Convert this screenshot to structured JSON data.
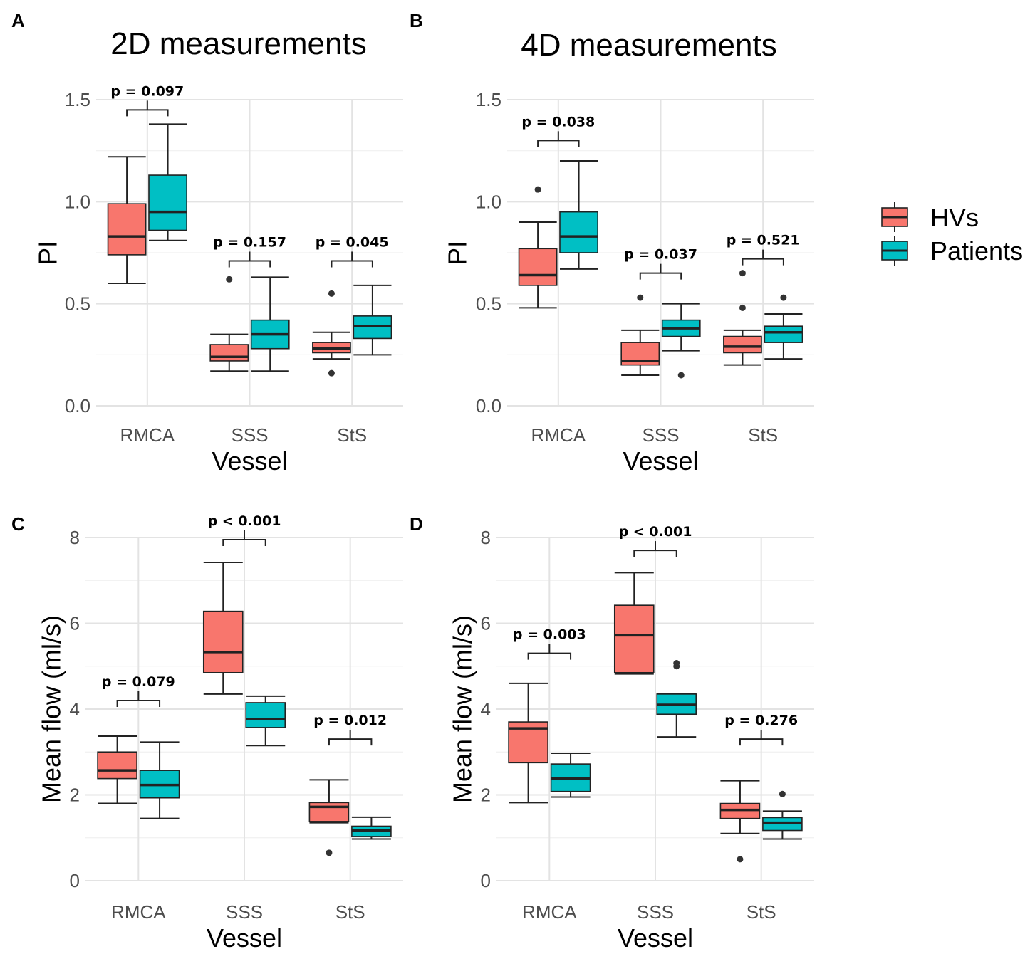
{
  "colors": {
    "HVs": "#F8766D",
    "Patients": "#00BFC4",
    "grid_major": "#e3e3e3",
    "grid_minor": "#f0f0f0"
  },
  "legend": {
    "items": [
      {
        "label": "HVs",
        "color": "#F8766D"
      },
      {
        "label": "Patients",
        "color": "#00BFC4"
      }
    ],
    "position": "right"
  },
  "chart_data": [
    {
      "id": "A",
      "letter": "A",
      "type": "boxplot",
      "title": "2D measurements",
      "xlabel": "Vessel",
      "ylabel": "PI",
      "ylim": [
        0,
        1.5
      ],
      "yticks": [
        0,
        0.5,
        1,
        1.5
      ],
      "ytick_labels": [
        "0.0",
        "0.5",
        "1.0",
        "1.5"
      ],
      "categories": [
        "RMCA",
        "SSS",
        "StS"
      ],
      "series": [
        {
          "name": "HVs",
          "boxes": [
            {
              "min": 0.6,
              "q1": 0.74,
              "median": 0.83,
              "q3": 0.99,
              "max": 1.22,
              "outliers": []
            },
            {
              "min": 0.17,
              "q1": 0.22,
              "median": 0.24,
              "q3": 0.3,
              "max": 0.35,
              "outliers": [
                0.62
              ]
            },
            {
              "min": 0.23,
              "q1": 0.26,
              "median": 0.28,
              "q3": 0.31,
              "max": 0.36,
              "outliers": [
                0.55,
                0.16
              ]
            }
          ]
        },
        {
          "name": "Patients",
          "boxes": [
            {
              "min": 0.81,
              "q1": 0.86,
              "median": 0.95,
              "q3": 1.13,
              "max": 1.38,
              "outliers": []
            },
            {
              "min": 0.17,
              "q1": 0.28,
              "median": 0.35,
              "q3": 0.42,
              "max": 0.63,
              "outliers": []
            },
            {
              "min": 0.25,
              "q1": 0.33,
              "median": 0.39,
              "q3": 0.44,
              "max": 0.59,
              "outliers": []
            }
          ]
        }
      ],
      "annotations": [
        {
          "category": "RMCA",
          "text": "p = 0.097",
          "y": 1.45
        },
        {
          "category": "SSS",
          "text": "p = 0.157",
          "y": 0.71
        },
        {
          "category": "StS",
          "text": "p = 0.045",
          "y": 0.71
        }
      ]
    },
    {
      "id": "B",
      "letter": "B",
      "type": "boxplot",
      "title": "4D measurements",
      "xlabel": "Vessel",
      "ylabel": "PI",
      "ylim": [
        0,
        1.5
      ],
      "yticks": [
        0,
        0.5,
        1,
        1.5
      ],
      "ytick_labels": [
        "0.0",
        "0.5",
        "1.0",
        "1.5"
      ],
      "categories": [
        "RMCA",
        "SSS",
        "StS"
      ],
      "series": [
        {
          "name": "HVs",
          "boxes": [
            {
              "min": 0.48,
              "q1": 0.59,
              "median": 0.64,
              "q3": 0.77,
              "max": 0.9,
              "outliers": [
                1.06
              ]
            },
            {
              "min": 0.15,
              "q1": 0.2,
              "median": 0.22,
              "q3": 0.31,
              "max": 0.37,
              "outliers": [
                0.53
              ]
            },
            {
              "min": 0.2,
              "q1": 0.26,
              "median": 0.29,
              "q3": 0.34,
              "max": 0.37,
              "outliers": [
                0.65,
                0.48
              ]
            }
          ]
        },
        {
          "name": "Patients",
          "boxes": [
            {
              "min": 0.67,
              "q1": 0.75,
              "median": 0.83,
              "q3": 0.95,
              "max": 1.2,
              "outliers": []
            },
            {
              "min": 0.27,
              "q1": 0.34,
              "median": 0.38,
              "q3": 0.42,
              "max": 0.5,
              "outliers": [
                0.15
              ]
            },
            {
              "min": 0.23,
              "q1": 0.31,
              "median": 0.36,
              "q3": 0.39,
              "max": 0.45,
              "outliers": [
                0.53
              ]
            }
          ]
        }
      ],
      "annotations": [
        {
          "category": "RMCA",
          "text": "p = 0.038",
          "y": 1.3
        },
        {
          "category": "SSS",
          "text": "p = 0.037",
          "y": 0.65
        },
        {
          "category": "StS",
          "text": "p = 0.521",
          "y": 0.72
        }
      ]
    },
    {
      "id": "C",
      "letter": "C",
      "type": "boxplot",
      "title": "",
      "xlabel": "Vessel",
      "ylabel": "Mean flow (ml/s)",
      "ylim": [
        0,
        8
      ],
      "yticks": [
        0,
        2,
        4,
        6,
        8
      ],
      "ytick_labels": [
        "0",
        "2",
        "4",
        "6",
        "8"
      ],
      "categories": [
        "RMCA",
        "SSS",
        "StS"
      ],
      "series": [
        {
          "name": "HVs",
          "boxes": [
            {
              "min": 1.8,
              "q1": 2.38,
              "median": 2.57,
              "q3": 3.0,
              "max": 3.37,
              "outliers": []
            },
            {
              "min": 4.35,
              "q1": 4.85,
              "median": 5.33,
              "q3": 6.28,
              "max": 7.42,
              "outliers": []
            },
            {
              "min": 1.35,
              "q1": 1.38,
              "median": 1.72,
              "q3": 1.82,
              "max": 2.35,
              "outliers": [
                0.65
              ]
            }
          ]
        },
        {
          "name": "Patients",
          "boxes": [
            {
              "min": 1.45,
              "q1": 1.93,
              "median": 2.23,
              "q3": 2.57,
              "max": 3.23,
              "outliers": []
            },
            {
              "min": 3.15,
              "q1": 3.57,
              "median": 3.77,
              "q3": 4.15,
              "max": 4.3,
              "outliers": []
            },
            {
              "min": 0.97,
              "q1": 1.03,
              "median": 1.17,
              "q3": 1.27,
              "max": 1.48,
              "outliers": []
            }
          ]
        }
      ],
      "annotations": [
        {
          "category": "RMCA",
          "text": "p = 0.079",
          "y": 4.2
        },
        {
          "category": "SSS",
          "text": "p < 0.001",
          "y": 7.95
        },
        {
          "category": "StS",
          "text": "p = 0.012",
          "y": 3.3
        }
      ]
    },
    {
      "id": "D",
      "letter": "D",
      "type": "boxplot",
      "title": "",
      "xlabel": "Vessel",
      "ylabel": "Mean flow (ml/s)",
      "ylim": [
        0,
        8
      ],
      "yticks": [
        0,
        2,
        4,
        6,
        8
      ],
      "ytick_labels": [
        "0",
        "2",
        "4",
        "6",
        "8"
      ],
      "categories": [
        "RMCA",
        "SSS",
        "StS"
      ],
      "series": [
        {
          "name": "HVs",
          "boxes": [
            {
              "min": 1.82,
              "q1": 2.75,
              "median": 3.55,
              "q3": 3.7,
              "max": 4.6,
              "outliers": []
            },
            {
              "min": 4.82,
              "q1": 4.85,
              "median": 5.72,
              "q3": 6.42,
              "max": 7.18,
              "outliers": []
            },
            {
              "min": 1.1,
              "q1": 1.45,
              "median": 1.65,
              "q3": 1.8,
              "max": 2.33,
              "outliers": [
                0.5
              ]
            }
          ]
        },
        {
          "name": "Patients",
          "boxes": [
            {
              "min": 1.95,
              "q1": 2.08,
              "median": 2.38,
              "q3": 2.72,
              "max": 2.97,
              "outliers": []
            },
            {
              "min": 3.35,
              "q1": 3.88,
              "median": 4.1,
              "q3": 4.35,
              "max": 4.35,
              "outliers": [
                5.0,
                5.07
              ]
            },
            {
              "min": 0.97,
              "q1": 1.17,
              "median": 1.35,
              "q3": 1.47,
              "max": 1.62,
              "outliers": [
                2.02
              ]
            }
          ]
        }
      ],
      "annotations": [
        {
          "category": "RMCA",
          "text": "p = 0.003",
          "y": 5.3
        },
        {
          "category": "SSS",
          "text": "p < 0.001",
          "y": 7.7
        },
        {
          "category": "StS",
          "text": "p = 0.276",
          "y": 3.3
        }
      ]
    }
  ]
}
